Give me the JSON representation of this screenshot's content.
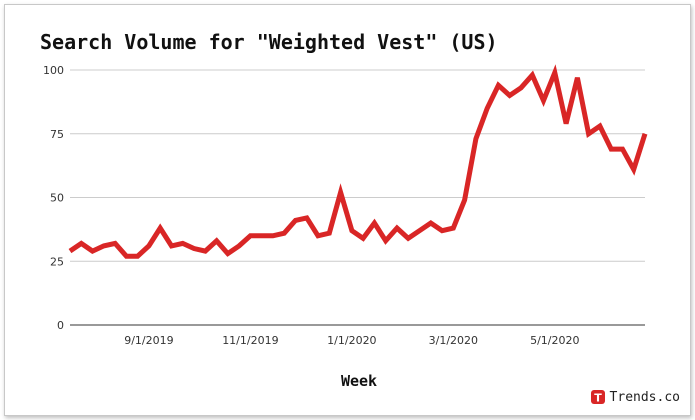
{
  "chart_data": {
    "type": "line",
    "title": "Search Volume for \"Weighted Vest\" (US)",
    "xlabel": "Week",
    "ylabel": "",
    "ylim": [
      0,
      100
    ],
    "yticks": [
      0,
      25,
      50,
      75,
      100
    ],
    "xticks": [
      {
        "label": "9/1/2019",
        "index": 7
      },
      {
        "label": "11/1/2019",
        "index": 16
      },
      {
        "label": "1/1/2020",
        "index": 25
      },
      {
        "label": "3/1/2020",
        "index": 34
      },
      {
        "label": "5/1/2020",
        "index": 43
      }
    ],
    "grid": true,
    "legend": "none",
    "series": [
      {
        "color": "#d92626",
        "values": [
          29,
          32,
          29,
          31,
          32,
          27,
          27,
          31,
          38,
          31,
          32,
          30,
          29,
          33,
          28,
          31,
          35,
          35,
          35,
          36,
          41,
          42,
          35,
          36,
          52,
          37,
          34,
          40,
          33,
          38,
          34,
          37,
          40,
          37,
          38,
          49,
          73,
          85,
          94,
          90,
          93,
          98,
          88,
          99,
          79,
          97,
          75,
          78,
          69,
          69,
          61,
          75
        ]
      }
    ]
  },
  "brand": {
    "name": "Trends.co",
    "logo_letter": "T",
    "color": "#d92626"
  }
}
